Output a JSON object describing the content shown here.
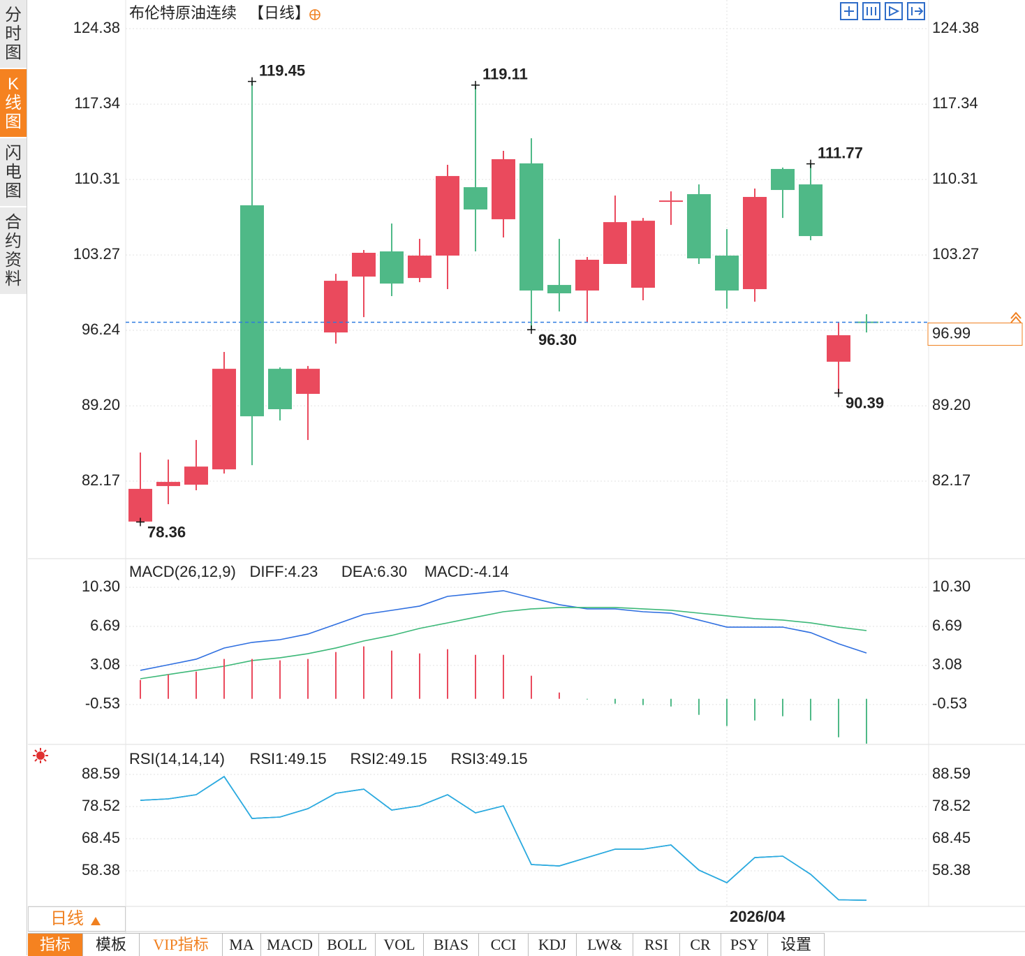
{
  "sidebar": [
    "分时图",
    "K线图",
    "闪电图",
    "合约资料"
  ],
  "period_tab": "日线",
  "toolbar": [
    "指标",
    "模板",
    "VIP指标",
    "MA",
    "MACD",
    "BOLL",
    "VOL",
    "BIAS",
    "CCI",
    "KDJ",
    "LW&",
    "RSI",
    "CR",
    "PSY",
    "设置"
  ],
  "chart_data": [
    {
      "type": "candlestick",
      "title": "布伦特原油连续",
      "period": "【日线】",
      "categories": [
        null,
        null,
        null,
        null,
        null,
        null,
        null,
        null,
        null,
        null,
        null,
        null,
        null,
        null,
        null,
        null,
        null,
        null,
        null,
        null,
        null,
        "2026/04",
        null,
        null,
        null,
        null,
        null
      ],
      "open": [
        78.4,
        81.71,
        81.84,
        83.27,
        107.9,
        92.65,
        90.31,
        96.04,
        101.25,
        103.6,
        101.12,
        103.21,
        109.59,
        106.6,
        111.81,
        100.47,
        99.95,
        102.43,
        100.21,
        108.22,
        108.94,
        103.21,
        100.08,
        111.29,
        109.85,
        93.31,
        97.05
      ],
      "high": [
        84.84,
        84.18,
        86.01,
        94.22,
        119.45,
        92.78,
        92.91,
        101.51,
        103.73,
        106.2,
        104.77,
        111.68,
        119.11,
        112.98,
        114.15,
        104.77,
        103.08,
        108.81,
        106.72,
        109.2,
        109.85,
        105.68,
        109.46,
        111.42,
        111.77,
        96.95,
        97.74
      ],
      "low": [
        78.36,
        80.02,
        81.32,
        82.88,
        83.66,
        87.83,
        86.01,
        95.0,
        97.47,
        99.43,
        100.73,
        100.08,
        103.6,
        104.9,
        96.3,
        98.0,
        96.95,
        102.43,
        99.04,
        106.07,
        102.43,
        98.26,
        98.91,
        106.72,
        104.64,
        90.39,
        96.04
      ],
      "close": [
        81.45,
        82.1,
        83.53,
        92.65,
        88.22,
        88.88,
        92.65,
        100.86,
        103.47,
        100.6,
        103.21,
        110.63,
        107.51,
        112.2,
        99.95,
        99.69,
        102.82,
        106.33,
        106.46,
        108.35,
        102.95,
        99.95,
        108.68,
        109.33,
        105.03,
        95.78,
        96.99
      ],
      "high_labels": [
        null,
        null,
        null,
        null,
        "119.45",
        null,
        null,
        null,
        null,
        null,
        null,
        null,
        "119.11",
        null,
        null,
        null,
        null,
        null,
        null,
        null,
        null,
        null,
        null,
        null,
        "111.77",
        null,
        null
      ],
      "low_labels": [
        "78.36",
        null,
        null,
        null,
        null,
        null,
        null,
        null,
        null,
        null,
        null,
        null,
        null,
        null,
        "96.30",
        null,
        null,
        null,
        null,
        null,
        null,
        null,
        null,
        null,
        null,
        "90.39",
        null
      ],
      "last_price": 96.99,
      "last_price_color": "#f08020",
      "up_color": "#ea4a5d",
      "down_color": "#4fb987",
      "grid": true,
      "ylim": [
        74.94,
        127.05
      ],
      "yticks": [
        124.38,
        117.34,
        110.31,
        103.27,
        96.24,
        {
          "value": 89.2,
          "label": "89.20"
        },
        82.17
      ]
    },
    {
      "type": "macd",
      "title": "MACD(26,12,9)",
      "series": [
        {
          "name": "DIFF:4.23",
          "color": "#2f6fe0",
          "kind": "line",
          "values": [
            2.63,
            3.14,
            3.66,
            4.69,
            5.21,
            5.46,
            5.98,
            6.88,
            7.79,
            8.17,
            8.56,
            9.46,
            9.72,
            9.98,
            9.33,
            8.69,
            8.3,
            8.3,
            8.04,
            7.91,
            7.27,
            6.62,
            6.62,
            6.62,
            6.11,
            5.08,
            4.23
          ]
        },
        {
          "name": "DEA:6.30",
          "color": "#3cb878",
          "kind": "line",
          "values": [
            1.85,
            2.24,
            2.63,
            3.01,
            3.53,
            3.79,
            4.17,
            4.69,
            5.34,
            5.85,
            6.5,
            7.01,
            7.53,
            8.04,
            8.3,
            8.43,
            8.43,
            8.43,
            8.3,
            8.17,
            7.91,
            7.66,
            7.4,
            7.27,
            7.01,
            6.62,
            6.3
          ]
        },
        {
          "name": "MACD:-4.14",
          "color": "#4ab0f0",
          "kind": "bar",
          "values": [
            1.74,
            2.26,
            2.51,
            3.68,
            3.68,
            3.55,
            3.68,
            4.32,
            4.84,
            4.45,
            4.19,
            4.58,
            4.06,
            4.06,
            2.13,
            0.58,
            -0.06,
            -0.45,
            -0.58,
            -0.71,
            -1.48,
            -2.51,
            -2.0,
            -1.61,
            -2.0,
            -3.55,
            -4.14
          ]
        }
      ],
      "up_color": "#ea4a5d",
      "down_color": "#4fb987",
      "grid": true,
      "ylim": [
        -4.21,
        12.94
      ],
      "yticks": [
        {
          "value": 10.3,
          "label": "10.30"
        },
        6.69,
        3.08,
        -0.53
      ]
    },
    {
      "type": "line",
      "title": "RSI(14,14,14)",
      "series": [
        {
          "name": "RSI1:49.15",
          "color": "#4a9ee8",
          "values": [
            80.49,
            80.93,
            82.24,
            87.93,
            74.8,
            75.24,
            77.86,
            82.68,
            83.99,
            77.43,
            78.74,
            82.24,
            76.55,
            78.74,
            60.35,
            59.91,
            62.54,
            65.17,
            65.17,
            66.48,
            58.6,
            54.66,
            62.54,
            62.98,
            57.28,
            49.3,
            49.15
          ]
        },
        {
          "name": "RSI2:49.15",
          "color": "#5fcf8f",
          "values": [
            80.49,
            80.93,
            82.24,
            87.93,
            74.8,
            75.24,
            77.86,
            82.68,
            83.99,
            77.43,
            78.74,
            82.24,
            76.55,
            78.74,
            60.35,
            59.91,
            62.54,
            65.17,
            65.17,
            66.48,
            58.6,
            54.66,
            62.54,
            62.98,
            57.28,
            49.3,
            49.15
          ]
        },
        {
          "name": "RSI3:49.15",
          "color": "#29a8e6",
          "values": [
            80.49,
            80.93,
            82.24,
            87.93,
            74.8,
            75.24,
            77.86,
            82.68,
            83.99,
            77.43,
            78.74,
            82.24,
            76.55,
            78.74,
            60.35,
            59.91,
            62.54,
            65.17,
            65.17,
            66.48,
            58.6,
            54.66,
            62.54,
            62.98,
            57.28,
            49.3,
            49.15
          ]
        }
      ],
      "grid": true,
      "ylim": [
        47.22,
        97.57
      ],
      "yticks": [
        88.59,
        78.52,
        68.45,
        58.38
      ]
    }
  ]
}
